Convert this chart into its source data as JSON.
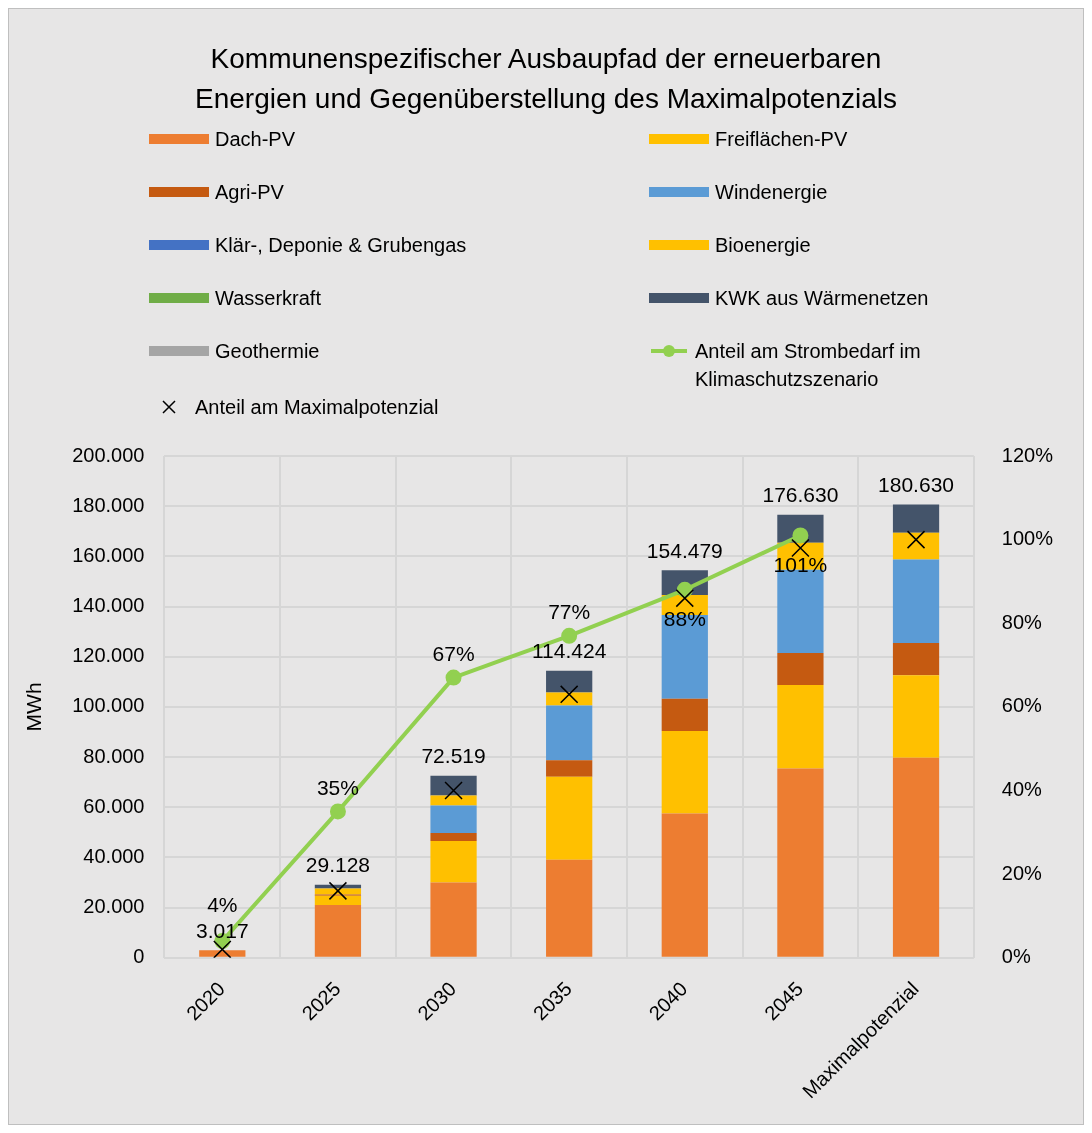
{
  "chart_data": {
    "type": "bar",
    "title": "Kommunenspezifischer Ausbaupfad der erneuerbaren Energien und Gegenüberstellung des Maximalpotenzials",
    "ylabel": "MWh",
    "categories": [
      "2020",
      "2025",
      "2030",
      "2035",
      "2040",
      "2045",
      "Maximalpotenzial"
    ],
    "stacked": true,
    "series": [
      {
        "name": "Dach-PV",
        "color": "#ed7d31",
        "values": [
          3017,
          21000,
          30000,
          39100,
          57500,
          75400,
          79700
        ]
      },
      {
        "name": "Freiflächen-PV",
        "color": "#ffc000",
        "values": [
          0,
          3700,
          16500,
          33100,
          32900,
          33300,
          32900
        ]
      },
      {
        "name": "Agri-PV",
        "color": "#c55a11",
        "values": [
          0,
          500,
          3200,
          6500,
          12800,
          12800,
          12900
        ]
      },
      {
        "name": "Windenergie",
        "color": "#5b9bd5",
        "values": [
          0,
          0,
          11000,
          21900,
          33400,
          33200,
          33200
        ]
      },
      {
        "name": "Klär-, Deponie & Grubengas",
        "color": "#4472c4",
        "values": [
          0,
          0,
          0,
          0,
          0,
          0,
          0
        ]
      },
      {
        "name": "Bioenergie",
        "color": "#ffc000",
        "values": [
          0,
          2400,
          4000,
          5100,
          8000,
          10700,
          10700
        ]
      },
      {
        "name": "Wasserkraft",
        "color": "#70ad47",
        "values": [
          0,
          0,
          0,
          0,
          0,
          0,
          0
        ]
      },
      {
        "name": "KWK aus Wärmenetzen",
        "color": "#44546a",
        "values": [
          0,
          1528,
          7819,
          8724,
          9879,
          11230,
          11230
        ]
      },
      {
        "name": "Geothermie",
        "color": "#a5a5a5",
        "values": [
          0,
          0,
          0,
          0,
          0,
          0,
          0
        ]
      },
      {
        "name": "Anteil am Strombedarf im Klimaschutzszenario",
        "type": "line",
        "axis": "y2",
        "color": "#92d050",
        "marker": "circle",
        "values": [
          4,
          35,
          67,
          77,
          88,
          101,
          null
        ],
        "value_labels": [
          "4%",
          "35%",
          "67%",
          "77%",
          "88%",
          "101%",
          null
        ]
      },
      {
        "name": "Anteil am Maximalpotenzial",
        "type": "scatter",
        "axis": "y2",
        "color": "#000000",
        "marker": "cross",
        "values": [
          2,
          16,
          40,
          63,
          86,
          98,
          100
        ]
      }
    ],
    "totals": [
      "3.017",
      "29.128",
      "72.519",
      "114.424",
      "154.479",
      "176.630",
      "180.630"
    ],
    "ylim": [
      0,
      200000
    ],
    "yticks": [
      {
        "value": 0,
        "label": "0"
      },
      {
        "value": 20000,
        "label": "20.000"
      },
      {
        "value": 40000,
        "label": "40.000"
      },
      {
        "value": 60000,
        "label": "60.000"
      },
      {
        "value": 80000,
        "label": "80.000"
      },
      {
        "value": 100000,
        "label": "100.000"
      },
      {
        "value": 120000,
        "label": "120.000"
      },
      {
        "value": 140000,
        "label": "140.000"
      },
      {
        "value": 160000,
        "label": "160.000"
      },
      {
        "value": 180000,
        "label": "180.000"
      },
      {
        "value": 200000,
        "label": "200.000"
      }
    ],
    "y2lim": [
      0,
      120
    ],
    "y2ticks": [
      {
        "value": 0,
        "label": "0%"
      },
      {
        "value": 20,
        "label": "20%"
      },
      {
        "value": 40,
        "label": "40%"
      },
      {
        "value": 60,
        "label": "60%"
      },
      {
        "value": 80,
        "label": "80%"
      },
      {
        "value": 100,
        "label": "100%"
      },
      {
        "value": 120,
        "label": "120%"
      }
    ],
    "grid": true,
    "legend": "top"
  }
}
